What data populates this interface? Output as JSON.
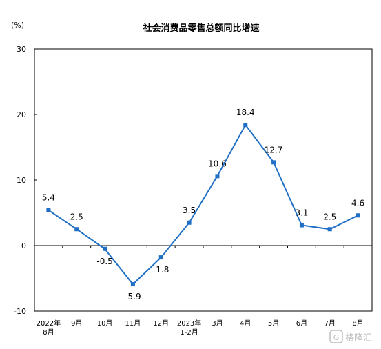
{
  "chart_data": {
    "type": "line",
    "title": "社会消费品零售总额同比增速",
    "unit": "(%)",
    "ylim": [
      -10,
      30
    ],
    "yticks": [
      "30",
      "20",
      "10",
      "0",
      "-10"
    ],
    "categories": [
      [
        "2022年",
        "8月"
      ],
      [
        "9月"
      ],
      [
        "10月"
      ],
      [
        "11月"
      ],
      [
        "12月"
      ],
      [
        "2023年",
        "1-2月"
      ],
      [
        "3月"
      ],
      [
        "4月"
      ],
      [
        "5月"
      ],
      [
        "6月"
      ],
      [
        "7月"
      ],
      [
        "8月"
      ]
    ],
    "series": [
      {
        "values": [
          5.4,
          2.5,
          -0.5,
          -5.9,
          -1.8,
          3.5,
          10.6,
          18.4,
          12.7,
          3.1,
          2.5,
          4.6
        ],
        "labels": [
          "5.4",
          "2.5",
          "-0.5",
          "-5.9",
          "-1.8",
          "3.5",
          "10.6",
          "18.4",
          "12.7",
          "3.1",
          "2.5",
          "4.6"
        ],
        "color": "#1f6fc6"
      }
    ],
    "grid": false,
    "legend": "none"
  },
  "watermark": "格隆汇"
}
